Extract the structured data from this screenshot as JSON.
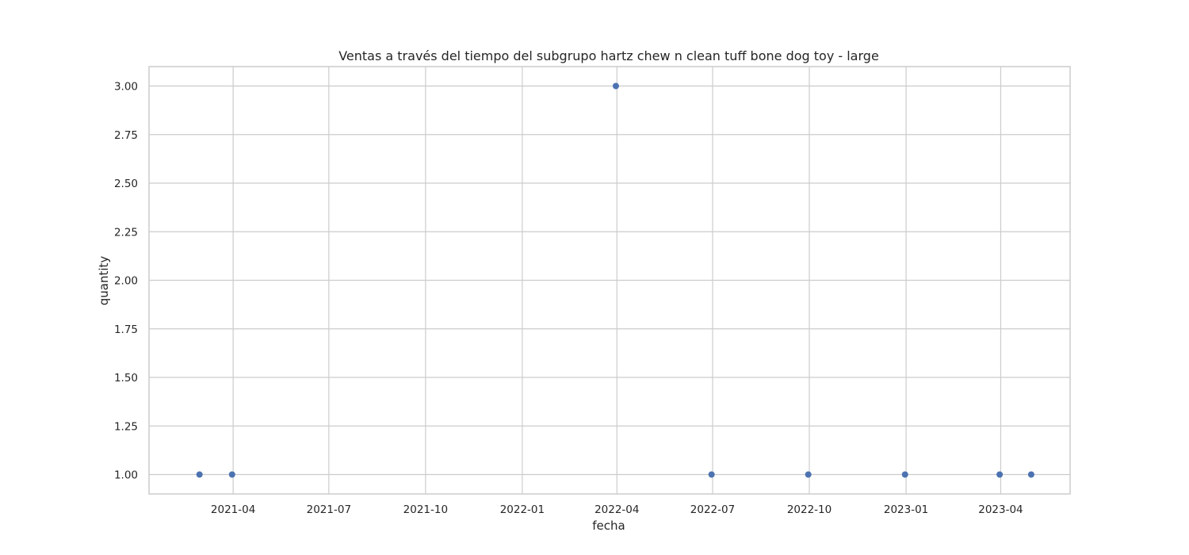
{
  "chart_data": {
    "type": "scatter",
    "title": "Ventas a través del tiempo del subgrupo hartz chew n clean tuff bone dog toy - large",
    "xlabel": "fecha",
    "ylabel": "quantity",
    "x_ticks": [
      "2021-04",
      "2021-07",
      "2021-10",
      "2022-01",
      "2022-04",
      "2022-07",
      "2022-10",
      "2023-01",
      "2023-04"
    ],
    "y_ticks": [
      "1.00",
      "1.25",
      "1.50",
      "1.75",
      "2.00",
      "2.25",
      "2.50",
      "2.75",
      "3.00"
    ],
    "ylim": [
      0.9,
      3.1
    ],
    "xlim": [
      "2021-01-11",
      "2023-06-06"
    ],
    "grid": true,
    "points": [
      {
        "x": "2021-02-28",
        "y": 1
      },
      {
        "x": "2021-03-31",
        "y": 1
      },
      {
        "x": "2022-03-31",
        "y": 3
      },
      {
        "x": "2022-06-30",
        "y": 1
      },
      {
        "x": "2022-09-30",
        "y": 1
      },
      {
        "x": "2022-12-31",
        "y": 1
      },
      {
        "x": "2023-03-31",
        "y": 1
      },
      {
        "x": "2023-04-30",
        "y": 1
      }
    ],
    "colors": {
      "point": "#4c72b0",
      "grid": "#cccccc",
      "text": "#262626"
    }
  }
}
